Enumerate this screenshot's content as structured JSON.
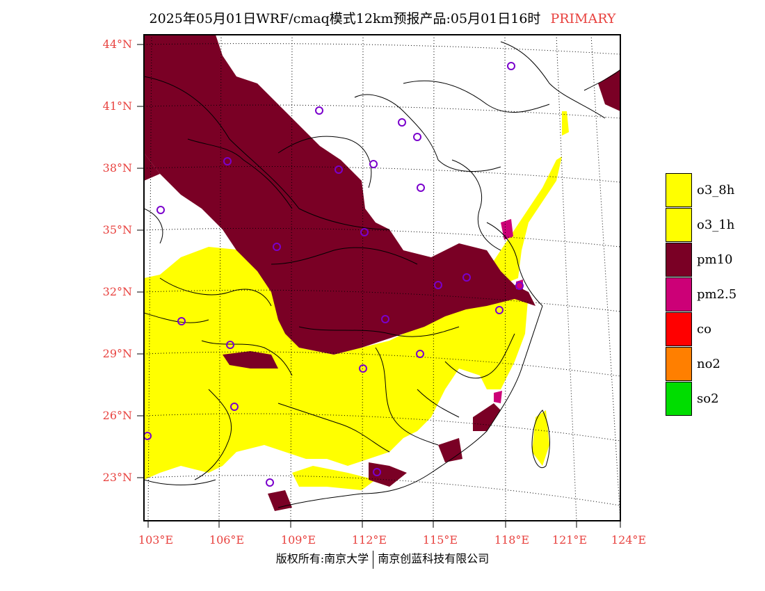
{
  "title": {
    "main": "2025年05月01日WRF/cmaq模式12km预报产品:05月01日16时",
    "tag": "PRIMARY"
  },
  "lat_labels": [
    "44°N",
    "41°N",
    "38°N",
    "35°N",
    "32°N",
    "29°N",
    "26°N",
    "23°N"
  ],
  "lon_labels": [
    "103°E",
    "106°E",
    "109°E",
    "112°E",
    "115°E",
    "118°E",
    "121°E",
    "124°E"
  ],
  "legend": [
    {
      "label": "o3_8h",
      "color": "#ffff00"
    },
    {
      "label": "o3_1h",
      "color": "#ffff00"
    },
    {
      "label": "pm10",
      "color": "#7a0025"
    },
    {
      "label": "pm2.5",
      "color": "#cc0077"
    },
    {
      "label": "co",
      "color": "#ff0000"
    },
    {
      "label": "no2",
      "color": "#ff7f00"
    },
    {
      "label": "so2",
      "color": "#00dd00"
    }
  ],
  "colors": {
    "label_red": "#e8423f",
    "pm10": "#7a0025",
    "ozone": "#ffff00",
    "station_marker": "#7a00cc"
  },
  "footer": {
    "left": "版权所有:南京大学",
    "right": "南京创蓝科技有限公司"
  }
}
